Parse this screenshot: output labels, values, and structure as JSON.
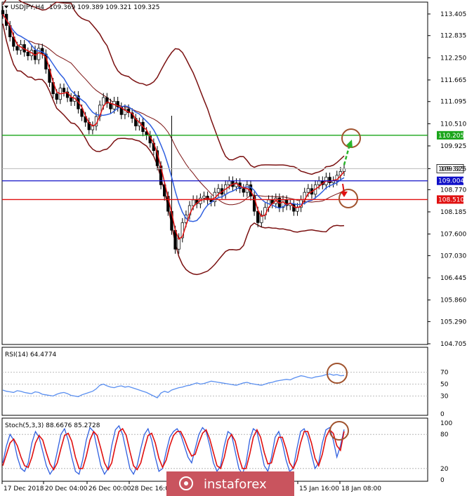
{
  "chart_data": [
    {
      "type": "candlestick",
      "symbol_label": "USDJPY,H4",
      "ohlc_label": "109.369 109.389 109.321 109.325",
      "ylim": [
        104.705,
        113.7
      ],
      "y_ticks": [
        "113.405",
        "112.835",
        "112.250",
        "111.665",
        "111.095",
        "110.510",
        "109.925",
        "109.325",
        "108.770",
        "108.185",
        "107.600",
        "107.030",
        "106.445",
        "105.860",
        "105.290",
        "104.705"
      ],
      "x_ticks": [
        "17 Dec 2018",
        "20 Dec 04:00",
        "26 Dec 00:00",
        "28 Dec 16:00",
        "15 Jan 16:00",
        "18 Jan 08:00"
      ],
      "levels": [
        {
          "name": "resistance",
          "value": 110.205,
          "label": "110.205",
          "color": "#1aa51a"
        },
        {
          "name": "pivot",
          "value": 109.004,
          "label": "109.004",
          "color": "#1010c8"
        },
        {
          "name": "support",
          "value": 108.51,
          "label": "108.510",
          "color": "#e01010"
        }
      ],
      "current_price": "109.325",
      "current_price_value": 109.325,
      "close_series": [
        113.4,
        113.1,
        112.8,
        112.55,
        112.45,
        112.6,
        112.4,
        112.3,
        112.45,
        112.2,
        112.5,
        112.35,
        111.95,
        111.6,
        111.3,
        111.15,
        111.45,
        111.35,
        111.2,
        111.1,
        111.25,
        110.9,
        110.7,
        110.55,
        110.35,
        110.45,
        110.7,
        111.0,
        111.2,
        111.05,
        110.9,
        111.1,
        110.95,
        110.75,
        110.9,
        110.8,
        110.65,
        110.45,
        110.55,
        110.3,
        110.2,
        110.0,
        109.8,
        109.4,
        108.9,
        108.6,
        108.2,
        107.7,
        107.2,
        107.5,
        107.9,
        108.1,
        108.35,
        108.5,
        108.4,
        108.55,
        108.6,
        108.5,
        108.45,
        108.7,
        108.8,
        108.65,
        108.9,
        109.0,
        108.85,
        108.95,
        108.8,
        108.7,
        108.9,
        108.6,
        108.2,
        107.9,
        108.1,
        108.3,
        108.5,
        108.4,
        108.55,
        108.3,
        108.5,
        108.35,
        108.4,
        108.2,
        108.3,
        108.5,
        108.7,
        108.8,
        108.65,
        108.9,
        109.0,
        108.9,
        109.1,
        108.95,
        109.0,
        109.15,
        109.25,
        109.33
      ],
      "indicators": [
        "Bollinger Bands",
        "Moving Average (fast)",
        "Moving Average (slow)"
      ]
    },
    {
      "type": "line",
      "label": "RSI(14) 64.4774",
      "ylim": [
        0,
        100
      ],
      "y_ticks": [
        "70",
        "50",
        "30",
        "0"
      ],
      "levels": [
        70,
        50,
        30
      ],
      "values": [
        40,
        38,
        37,
        36,
        39,
        38,
        36,
        35,
        34,
        37,
        36,
        33,
        32,
        31,
        30,
        33,
        35,
        36,
        34,
        31,
        30,
        29,
        32,
        34,
        36,
        38,
        42,
        48,
        50,
        47,
        45,
        44,
        46,
        47,
        45,
        46,
        44,
        42,
        40,
        38,
        36,
        33,
        30,
        27,
        35,
        38,
        36,
        40,
        42,
        44,
        45,
        47,
        48,
        50,
        52,
        50,
        51,
        53,
        55,
        54,
        53,
        52,
        51,
        50,
        49,
        48,
        50,
        52,
        53,
        51,
        50,
        49,
        48,
        50,
        52,
        53,
        55,
        56,
        57,
        58,
        57,
        60,
        62,
        64,
        63,
        61,
        60,
        62,
        63,
        64,
        66,
        67,
        65,
        66,
        64,
        64.5
      ]
    },
    {
      "type": "line",
      "label": "Stoch(5,3,3) 88.6676 85.2728",
      "ylim": [
        0,
        100
      ],
      "y_ticks": [
        "100",
        "80",
        "20",
        "0"
      ],
      "levels": [
        80,
        20
      ],
      "k": [
        30,
        60,
        80,
        70,
        40,
        20,
        15,
        30,
        65,
        85,
        75,
        50,
        25,
        10,
        20,
        50,
        80,
        90,
        70,
        40,
        15,
        10,
        35,
        70,
        92,
        85,
        55,
        25,
        10,
        20,
        60,
        88,
        95,
        80,
        50,
        20,
        10,
        25,
        55,
        80,
        90,
        70,
        40,
        15,
        20,
        50,
        75,
        85,
        90,
        80,
        60,
        40,
        30,
        55,
        80,
        92,
        85,
        60,
        30,
        15,
        25,
        60,
        85,
        80,
        50,
        20,
        10,
        30,
        70,
        90,
        85,
        55,
        25,
        15,
        40,
        75,
        85,
        65,
        35,
        15,
        20,
        55,
        85,
        90,
        75,
        45,
        20,
        30,
        65,
        88,
        92,
        70,
        40,
        60,
        88.7
      ],
      "d": [
        25,
        45,
        65,
        72,
        60,
        40,
        25,
        22,
        40,
        65,
        78,
        70,
        48,
        28,
        18,
        30,
        55,
        78,
        82,
        68,
        40,
        20,
        20,
        42,
        70,
        85,
        78,
        55,
        30,
        18,
        30,
        60,
        85,
        90,
        78,
        50,
        25,
        18,
        30,
        55,
        78,
        82,
        65,
        38,
        22,
        35,
        60,
        78,
        85,
        85,
        72,
        55,
        42,
        45,
        65,
        82,
        88,
        72,
        48,
        25,
        20,
        40,
        70,
        80,
        68,
        40,
        20,
        20,
        45,
        75,
        88,
        75,
        48,
        28,
        30,
        55,
        75,
        75,
        55,
        30,
        20,
        35,
        65,
        85,
        85,
        65,
        38,
        25,
        45,
        75,
        88,
        82,
        60,
        52,
        85.3
      ]
    }
  ],
  "watermark": "instaforex",
  "annotation_colors": {
    "circle": "#a0522d",
    "up_arrow": "#2ab52a",
    "down_arrow": "#e01010",
    "bollinger": "#7a1010",
    "ma_fast": "#e01010",
    "ma_slow": "#3060e0",
    "rsi_line": "#5a8ff0",
    "stoch_k": "#3060e0",
    "stoch_d": "#e01010"
  }
}
